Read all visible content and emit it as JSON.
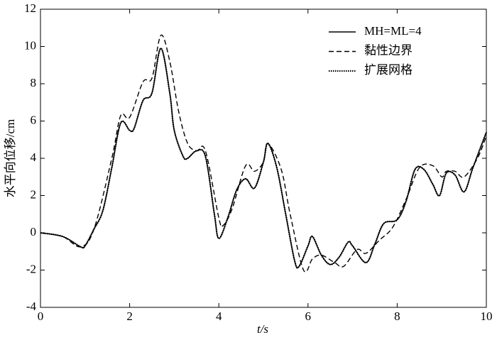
{
  "chart_data": {
    "type": "line",
    "xlabel": "t/s",
    "ylabel": "水平向位移/cm",
    "xlim": [
      0,
      10
    ],
    "xticks": [
      0,
      2,
      4,
      6,
      8,
      10
    ],
    "ylim": [
      -4,
      12
    ],
    "yticks": [
      -4,
      -2,
      0,
      2,
      4,
      6,
      8,
      10,
      12
    ],
    "legend": "upper right",
    "series": [
      {
        "name": "MH=ML=4",
        "color": "#000000",
        "linestyle": "solid",
        "x": [
          0,
          0.5,
          0.9,
          1.0,
          1.2,
          1.4,
          1.6,
          1.8,
          2.0,
          2.1,
          2.3,
          2.5,
          2.7,
          2.9,
          3.0,
          3.2,
          3.3,
          3.5,
          3.7,
          3.9,
          4.0,
          4.2,
          4.4,
          4.6,
          4.8,
          5.0,
          5.1,
          5.3,
          5.5,
          5.7,
          5.8,
          6.0,
          6.1,
          6.3,
          6.5,
          6.7,
          6.9,
          7.0,
          7.3,
          7.5,
          7.7,
          8.0,
          8.2,
          8.4,
          8.6,
          8.8,
          8.95,
          9.1,
          9.3,
          9.5,
          9.7,
          10
        ],
        "values": [
          0,
          -0.2,
          -0.75,
          -0.7,
          0.2,
          1.2,
          3.5,
          5.9,
          5.5,
          5.6,
          7.1,
          7.5,
          9.9,
          7.5,
          5.5,
          4.1,
          4.0,
          4.4,
          4.1,
          1.0,
          -0.3,
          0.8,
          2.3,
          2.9,
          2.4,
          3.8,
          4.8,
          3.5,
          1.0,
          -1.5,
          -1.8,
          -0.7,
          -0.2,
          -1.2,
          -1.7,
          -1.3,
          -0.5,
          -0.7,
          -1.6,
          -0.6,
          0.5,
          0.7,
          1.7,
          3.4,
          3.4,
          2.6,
          2.0,
          3.2,
          3.1,
          2.2,
          3.5,
          5.4
        ]
      },
      {
        "name": "黏性边界",
        "color": "#000000",
        "linestyle": "dashed",
        "x": [
          0,
          0.5,
          0.9,
          1.2,
          1.6,
          1.8,
          2.0,
          2.3,
          2.5,
          2.7,
          2.9,
          3.1,
          3.3,
          3.5,
          3.7,
          4.0,
          4.1,
          4.3,
          4.6,
          4.8,
          5.0,
          5.1,
          5.4,
          5.6,
          5.9,
          6.1,
          6.3,
          6.6,
          6.8,
          7.1,
          7.3,
          7.6,
          7.9,
          8.2,
          8.5,
          8.8,
          9.0,
          9.1,
          9.3,
          9.5,
          9.8,
          10
        ],
        "values": [
          0,
          -0.2,
          -0.75,
          0.2,
          4.0,
          6.3,
          6.2,
          8.1,
          8.3,
          10.6,
          9.2,
          6.5,
          4.8,
          4.4,
          4.4,
          0.8,
          0.4,
          1.3,
          3.6,
          3.3,
          3.8,
          4.8,
          3.4,
          1.0,
          -2.0,
          -1.4,
          -1.2,
          -1.6,
          -1.8,
          -0.9,
          -1.1,
          -0.4,
          0.3,
          1.8,
          3.5,
          3.6,
          3.0,
          3.3,
          3.3,
          3.0,
          4.0,
          5.2
        ]
      },
      {
        "name": "扩展网格",
        "color": "#000000",
        "linestyle": "dotted",
        "x": [
          0,
          0.5,
          0.9,
          1.0,
          1.2,
          1.4,
          1.6,
          1.8,
          2.0,
          2.1,
          2.3,
          2.5,
          2.7,
          2.9,
          3.0,
          3.2,
          3.3,
          3.5,
          3.7,
          3.9,
          4.0,
          4.2,
          4.4,
          4.6,
          4.8,
          5.0,
          5.1,
          5.3,
          5.5,
          5.7,
          5.8,
          6.0,
          6.1,
          6.3,
          6.5,
          6.7,
          6.9,
          7.0,
          7.3,
          7.5,
          7.7,
          8.0,
          8.2,
          8.4,
          8.6,
          8.8,
          8.95,
          9.1,
          9.3,
          9.5,
          9.7,
          10
        ],
        "values": [
          0,
          -0.2,
          -0.75,
          -0.7,
          0.2,
          1.2,
          3.5,
          5.9,
          5.5,
          5.6,
          7.1,
          7.5,
          9.9,
          7.5,
          5.5,
          4.1,
          4.0,
          4.4,
          4.1,
          1.0,
          -0.3,
          0.8,
          2.3,
          2.9,
          2.4,
          3.8,
          4.8,
          3.5,
          1.0,
          -1.5,
          -1.8,
          -0.7,
          -0.2,
          -1.2,
          -1.7,
          -1.3,
          -0.5,
          -0.7,
          -1.6,
          -0.6,
          0.5,
          0.7,
          1.7,
          3.4,
          3.4,
          2.6,
          2.0,
          3.2,
          3.1,
          2.2,
          3.5,
          5.4
        ]
      }
    ]
  }
}
